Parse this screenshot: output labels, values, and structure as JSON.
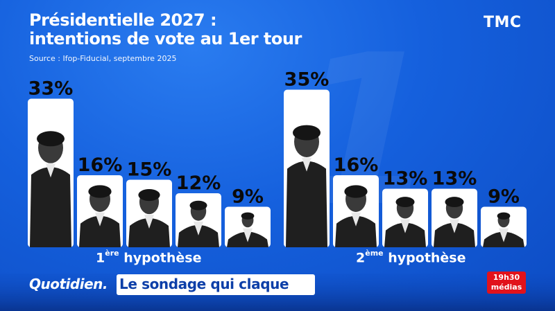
{
  "title_line1": "Présidentielle 2027 :",
  "title_line2": "intentions de vote au 1er tour",
  "source": "Source : Ifop-Fiducial, septembre 2025",
  "channel": "TMC",
  "colors": {
    "background": "#1560dd",
    "card": "#ffffff",
    "percentage_text": "#0a0a0a",
    "slogan_text": "#0d3fa8",
    "media_logo": "#e1121b"
  },
  "chart_data": [
    {
      "type": "bar",
      "group_label": {
        "ordinal": "1",
        "superscript": "ère",
        "word": "hypothèse"
      },
      "values": [
        33,
        16,
        15,
        12,
        9
      ],
      "labels": [
        "33%",
        "16%",
        "15%",
        "12%",
        "9%"
      ],
      "unit": "%"
    },
    {
      "type": "bar",
      "group_label": {
        "ordinal": "2",
        "superscript": "ème",
        "word": "hypothèse"
      },
      "values": [
        35,
        16,
        13,
        13,
        9
      ],
      "labels": [
        "35%",
        "16%",
        "13%",
        "13%",
        "9%"
      ],
      "unit": "%"
    }
  ],
  "banner": {
    "show_name": "Quotidien.",
    "slogan": "Le sondage qui claque",
    "media_logo_line1": "19h30",
    "media_logo_line2": "médias"
  }
}
